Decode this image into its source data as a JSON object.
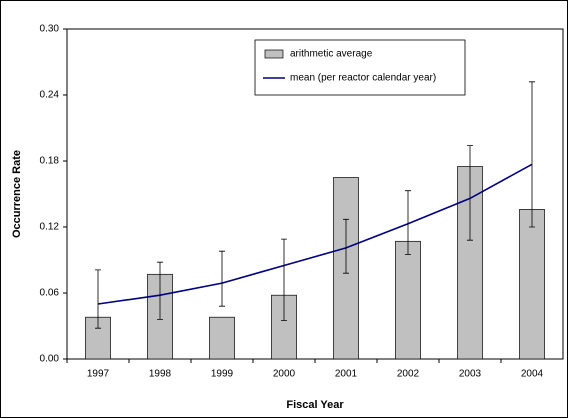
{
  "chart_data": {
    "type": "bar",
    "x_label": "Fiscal Year",
    "y_label": "Occurrence Rate",
    "categories": [
      "1997",
      "1998",
      "1999",
      "2000",
      "2001",
      "2002",
      "2003",
      "2004"
    ],
    "series": [
      {
        "name": "arithmetic average",
        "type": "bar",
        "color": "#c0c0c0",
        "values": [
          0.038,
          0.077,
          0.038,
          0.058,
          0.165,
          0.107,
          0.175,
          0.136
        ]
      },
      {
        "name": "mean (per reactor calendar year)",
        "type": "line",
        "color": "#000080",
        "values": [
          0.05,
          0.058,
          0.069,
          0.085,
          0.101,
          0.123,
          0.146,
          0.177
        ],
        "lower": [
          0.028,
          0.036,
          0.048,
          0.035,
          0.078,
          0.095,
          0.108,
          0.12
        ],
        "upper": [
          0.081,
          0.088,
          0.098,
          0.109,
          0.127,
          0.153,
          0.194,
          0.252
        ]
      }
    ],
    "ylim": [
      0,
      0.3
    ],
    "yticks": [
      {
        "value": 0,
        "label": "0.00"
      },
      0.06,
      0.12,
      0.18,
      0.24,
      {
        "value": 0.3,
        "label": "0.30"
      }
    ],
    "grid": false,
    "legend": "top"
  }
}
